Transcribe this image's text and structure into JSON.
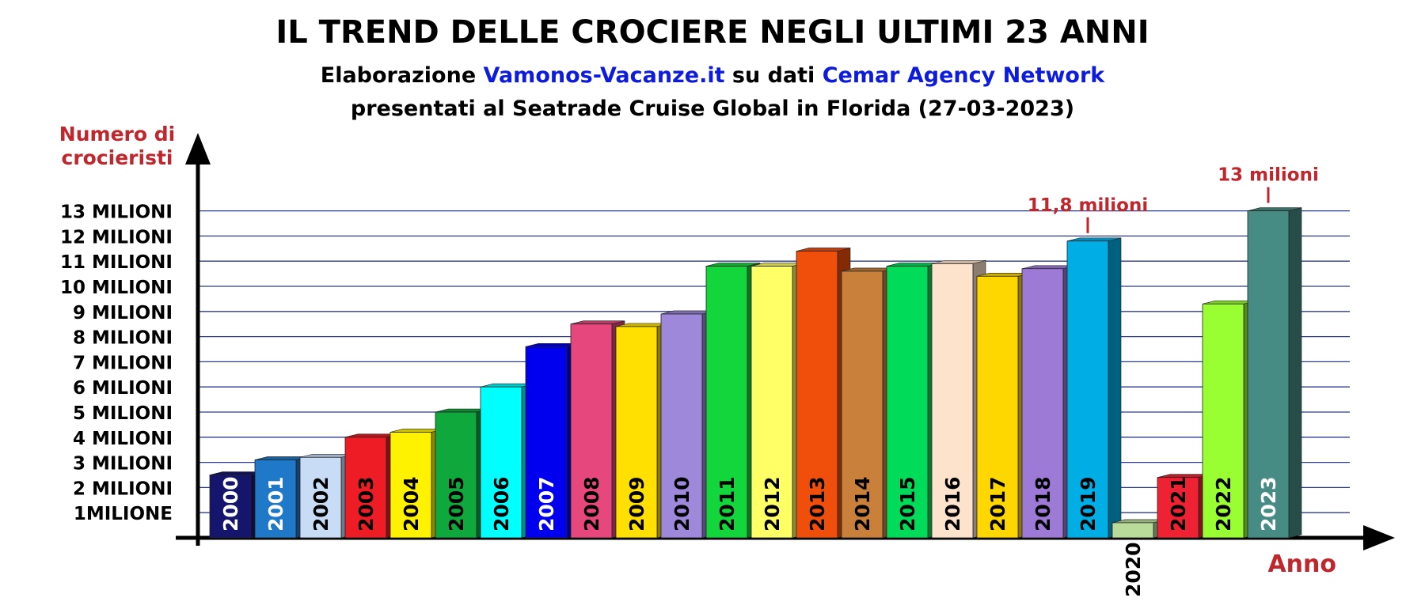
{
  "colors": {
    "accent_red": "#c0272d",
    "highlight_blue": "#0d1bdc",
    "grid": "#2b3a8c"
  },
  "chart_data": {
    "type": "bar",
    "title": "IL TREND DELLE CROCIERE NEGLI ULTIMI 23 ANNI",
    "subtitle_line1": {
      "part1": "Elaborazione ",
      "part2": "Vamonos-Vacanze.it",
      "part3": " su dati ",
      "part4": "Cemar Agency Network"
    },
    "subtitle_line2": "presentati al Seatrade Cruise Global in Florida (27-03-2023)",
    "ylabel_line1": "Numero di",
    "ylabel_line2": "crocieristi",
    "xlabel": "Anno",
    "ylim": [
      0,
      13
    ],
    "grid": true,
    "y_ticks": [
      {
        "value": 1,
        "label": "1MILIONE"
      },
      {
        "value": 2,
        "label": "2 MILIONI"
      },
      {
        "value": 3,
        "label": "3 MILIONI"
      },
      {
        "value": 4,
        "label": "4 MILIONI"
      },
      {
        "value": 5,
        "label": "5 MILIONI"
      },
      {
        "value": 6,
        "label": "6 MILIONI"
      },
      {
        "value": 7,
        "label": "7 MILIONI"
      },
      {
        "value": 8,
        "label": "8 MILIONI"
      },
      {
        "value": 9,
        "label": "9 MILIONI"
      },
      {
        "value": 10,
        "label": "10 MILIONI"
      },
      {
        "value": 11,
        "label": "11 MILIONI"
      },
      {
        "value": 12,
        "label": "12 MILIONI"
      },
      {
        "value": 13,
        "label": "13 MILIONI"
      }
    ],
    "bars": [
      {
        "year": "2000",
        "value": 2.5,
        "color": "#15156e",
        "label_color": "#ffffff"
      },
      {
        "year": "2001",
        "value": 3.1,
        "color": "#1f78c8",
        "label_color": "#ffffff"
      },
      {
        "year": "2002",
        "value": 3.2,
        "color": "#c9dcf5",
        "label_color": "#000000"
      },
      {
        "year": "2003",
        "value": 4.0,
        "color": "#ee1c25",
        "label_color": "#000000"
      },
      {
        "year": "2004",
        "value": 4.2,
        "color": "#fff200",
        "label_color": "#000000"
      },
      {
        "year": "2005",
        "value": 5.0,
        "color": "#0fa83c",
        "label_color": "#000000"
      },
      {
        "year": "2006",
        "value": 6.0,
        "color": "#00ffff",
        "label_color": "#000000"
      },
      {
        "year": "2007",
        "value": 7.6,
        "color": "#0000ee",
        "label_color": "#ffffff"
      },
      {
        "year": "2008",
        "value": 8.5,
        "color": "#e6487e",
        "label_color": "#000000"
      },
      {
        "year": "2009",
        "value": 8.4,
        "color": "#ffe000",
        "label_color": "#000000"
      },
      {
        "year": "2010",
        "value": 8.9,
        "color": "#9d88d9",
        "label_color": "#000000"
      },
      {
        "year": "2011",
        "value": 10.8,
        "color": "#12d63c",
        "label_color": "#000000"
      },
      {
        "year": "2012",
        "value": 10.8,
        "color": "#ffff66",
        "label_color": "#000000"
      },
      {
        "year": "2013",
        "value": 11.4,
        "color": "#f04e0b",
        "label_color": "#000000"
      },
      {
        "year": "2014",
        "value": 10.6,
        "color": "#c8803a",
        "label_color": "#000000"
      },
      {
        "year": "2015",
        "value": 10.8,
        "color": "#00dc5a",
        "label_color": "#000000"
      },
      {
        "year": "2016",
        "value": 10.9,
        "color": "#fde3cc",
        "label_color": "#000000"
      },
      {
        "year": "2017",
        "value": 10.4,
        "color": "#ffd700",
        "label_color": "#000000"
      },
      {
        "year": "2018",
        "value": 10.7,
        "color": "#9d7ad6",
        "label_color": "#000000"
      },
      {
        "year": "2019",
        "value": 11.8,
        "color": "#00aee6",
        "label_color": "#000000"
      },
      {
        "year": "2020",
        "value": 0.6,
        "color": "#b9dc9a",
        "label_color": "#000000"
      },
      {
        "year": "2021",
        "value": 2.4,
        "color": "#ee2233",
        "label_color": "#000000"
      },
      {
        "year": "2022",
        "value": 9.3,
        "color": "#99ff33",
        "label_color": "#000000"
      },
      {
        "year": "2023",
        "value": 13.0,
        "color": "#468c84",
        "label_color": "#ffffff"
      }
    ],
    "annotations": [
      {
        "year": "2019",
        "text": "11,8 milioni"
      },
      {
        "year": "2023",
        "text": "13 milioni"
      }
    ]
  }
}
